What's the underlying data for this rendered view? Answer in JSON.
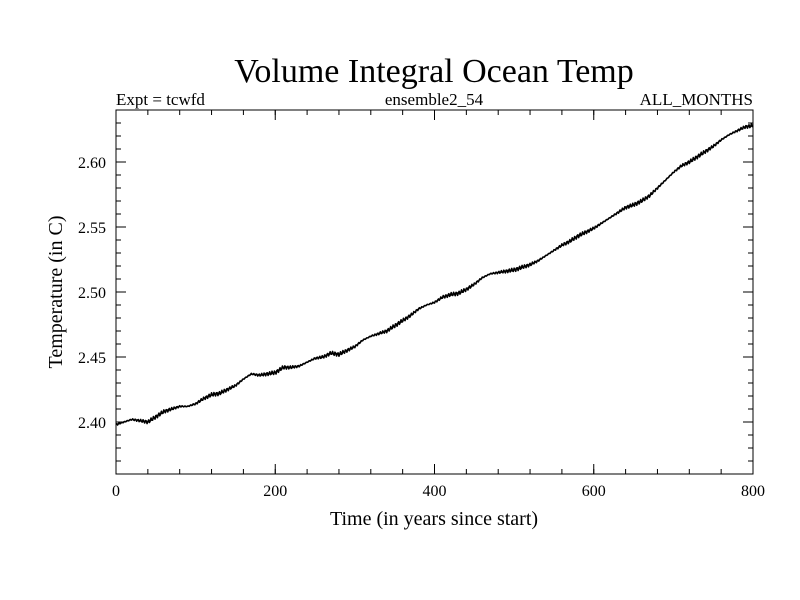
{
  "chart_data": {
    "type": "line",
    "title": "Volume Integral Ocean Temp",
    "subtitle_left": "Expt = tcwfd",
    "subtitle_center": "ensemble2_54",
    "subtitle_right": "ALL_MONTHS",
    "xlabel": "Time (in years since start)",
    "ylabel": "Temperature (in C)",
    "xlim": [
      0,
      800
    ],
    "ylim": [
      2.36,
      2.64
    ],
    "xticks": [
      0,
      200,
      400,
      600,
      800
    ],
    "xtick_labels": [
      "0",
      "200",
      "400",
      "600",
      "800"
    ],
    "yticks": [
      2.4,
      2.45,
      2.5,
      2.55,
      2.6
    ],
    "ytick_labels": [
      "2.40",
      "2.45",
      "2.50",
      "2.55",
      "2.60"
    ],
    "grid": false,
    "series": [
      {
        "name": "Volume Integral Ocean Temp",
        "color": "#000000",
        "x": [
          0,
          10,
          20,
          30,
          40,
          50,
          60,
          70,
          80,
          90,
          100,
          110,
          120,
          130,
          140,
          150,
          160,
          170,
          180,
          190,
          200,
          210,
          220,
          230,
          240,
          250,
          260,
          270,
          280,
          290,
          300,
          310,
          320,
          330,
          340,
          350,
          360,
          370,
          380,
          390,
          400,
          410,
          420,
          430,
          440,
          450,
          460,
          470,
          480,
          490,
          500,
          510,
          520,
          530,
          540,
          550,
          560,
          570,
          580,
          590,
          600,
          610,
          620,
          630,
          640,
          650,
          660,
          670,
          680,
          690,
          700,
          710,
          720,
          730,
          740,
          750,
          760,
          770,
          780,
          790,
          800
        ],
        "y": [
          2.398,
          2.4,
          2.402,
          2.401,
          2.4,
          2.404,
          2.408,
          2.41,
          2.412,
          2.412,
          2.414,
          2.418,
          2.421,
          2.422,
          2.425,
          2.428,
          2.433,
          2.437,
          2.436,
          2.437,
          2.438,
          2.442,
          2.442,
          2.443,
          2.446,
          2.449,
          2.45,
          2.453,
          2.452,
          2.455,
          2.458,
          2.463,
          2.466,
          2.468,
          2.47,
          2.474,
          2.478,
          2.482,
          2.487,
          2.49,
          2.492,
          2.496,
          2.498,
          2.499,
          2.502,
          2.506,
          2.511,
          2.514,
          2.515,
          2.516,
          2.517,
          2.519,
          2.521,
          2.524,
          2.528,
          2.532,
          2.536,
          2.539,
          2.543,
          2.546,
          2.549,
          2.553,
          2.557,
          2.561,
          2.565,
          2.567,
          2.57,
          2.574,
          2.58,
          2.586,
          2.592,
          2.597,
          2.6,
          2.604,
          2.608,
          2.612,
          2.617,
          2.621,
          2.624,
          2.627,
          2.628
        ]
      }
    ]
  }
}
